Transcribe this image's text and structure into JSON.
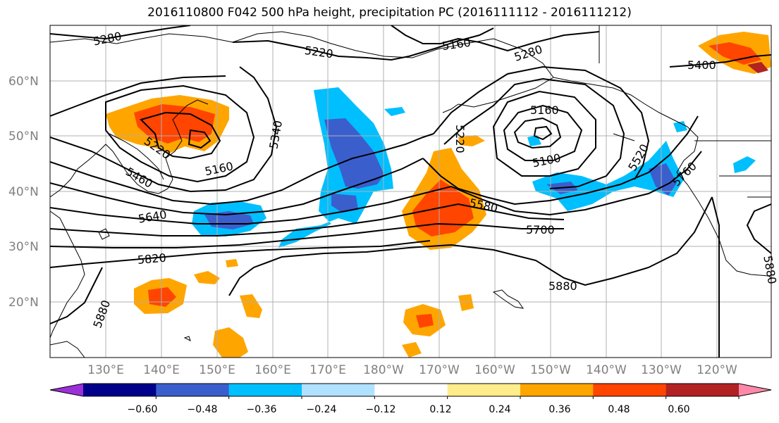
{
  "title": "2016110800 F042 500 hPa height, precipitation PC (2016111112 - 2016111212)",
  "lat_labels": [
    "60°N",
    "50°N",
    "40°N",
    "30°N",
    "20°N"
  ],
  "lon_labels": [
    "130°E",
    "140°E",
    "150°E",
    "160°E",
    "170°E",
    "180°W",
    "170°W",
    "160°W",
    "150°W",
    "140°W",
    "130°W",
    "120°W"
  ],
  "contour_labels": [
    "5280",
    "5220",
    "5160",
    "5280",
    "5400",
    "5160",
    "5220",
    "5340",
    "5160",
    "5220",
    "5460",
    "5640",
    "5820",
    "5880",
    "5160",
    "5100",
    "5520",
    "5760",
    "5580",
    "5700",
    "5880",
    "5880"
  ],
  "colorbar": {
    "ticks": [
      "−0.60",
      "−0.48",
      "−0.36",
      "−0.24",
      "−0.12",
      "0.12",
      "0.24",
      "0.36",
      "0.48",
      "0.60"
    ],
    "colors": [
      "#9b30d9",
      "#00008b",
      "#3a5fcd",
      "#00bfff",
      "#b0e2ff",
      "#ffffff",
      "#ffec8b",
      "#ffa500",
      "#ff4500",
      "#b22222",
      "#ff88aa"
    ]
  },
  "map_colors": {
    "negative_strong": "#3a5fcd",
    "negative_moderate": "#00bfff",
    "negative_light": "#b0e2ff",
    "positive_light": "#ffec8b",
    "positive_moderate": "#ffa500",
    "positive_strong": "#ff4500",
    "positive_extreme": "#b22222"
  }
}
